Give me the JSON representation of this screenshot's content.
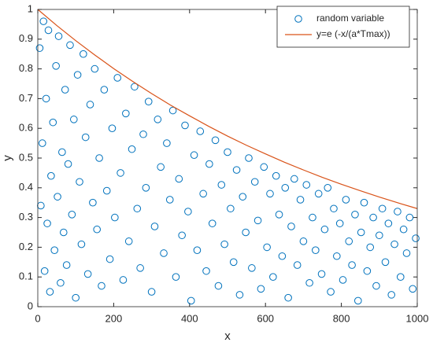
{
  "chart_data": {
    "type": "scatter",
    "xlabel": "x",
    "ylabel": "y",
    "xlim": [
      0,
      1000
    ],
    "ylim": [
      0,
      1
    ],
    "xticks": [
      0,
      200,
      400,
      600,
      800,
      1000
    ],
    "yticks": [
      0,
      0.1,
      0.2,
      0.3,
      0.4,
      0.5,
      0.6,
      0.7,
      0.8,
      0.9,
      1
    ],
    "grid": false,
    "legend": "upper right",
    "series": [
      {
        "name": "random variable",
        "type": "scatter",
        "color": "#0072bd",
        "x": [
          5,
          8,
          12,
          15,
          18,
          22,
          25,
          28,
          32,
          35,
          40,
          44,
          48,
          52,
          55,
          60,
          64,
          68,
          72,
          76,
          80,
          85,
          90,
          95,
          100,
          105,
          110,
          115,
          120,
          126,
          132,
          138,
          145,
          150,
          156,
          162,
          168,
          175,
          182,
          190,
          196,
          203,
          210,
          218,
          225,
          232,
          240,
          248,
          255,
          262,
          270,
          278,
          285,
          292,
          300,
          308,
          316,
          324,
          332,
          340,
          348,
          356,
          364,
          372,
          380,
          388,
          396,
          404,
          412,
          420,
          428,
          436,
          444,
          452,
          460,
          468,
          476,
          484,
          492,
          500,
          508,
          516,
          524,
          532,
          540,
          548,
          556,
          564,
          572,
          580,
          588,
          596,
          604,
          612,
          620,
          628,
          636,
          644,
          652,
          660,
          668,
          676,
          684,
          692,
          700,
          708,
          716,
          724,
          732,
          740,
          748,
          756,
          764,
          772,
          780,
          788,
          796,
          804,
          812,
          820,
          828,
          836,
          844,
          852,
          860,
          868,
          876,
          884,
          892,
          900,
          908,
          916,
          924,
          932,
          940,
          948,
          956,
          964,
          972,
          980,
          988,
          996
        ],
        "values": [
          0.87,
          0.34,
          0.55,
          0.96,
          0.12,
          0.7,
          0.28,
          0.93,
          0.05,
          0.44,
          0.62,
          0.19,
          0.81,
          0.37,
          0.91,
          0.08,
          0.52,
          0.25,
          0.73,
          0.14,
          0.48,
          0.88,
          0.31,
          0.63,
          0.03,
          0.78,
          0.42,
          0.21,
          0.85,
          0.57,
          0.11,
          0.68,
          0.35,
          0.8,
          0.26,
          0.5,
          0.07,
          0.73,
          0.39,
          0.16,
          0.6,
          0.3,
          0.77,
          0.45,
          0.09,
          0.65,
          0.22,
          0.53,
          0.74,
          0.33,
          0.13,
          0.58,
          0.4,
          0.69,
          0.05,
          0.27,
          0.63,
          0.47,
          0.18,
          0.55,
          0.36,
          0.66,
          0.1,
          0.43,
          0.24,
          0.61,
          0.32,
          0.02,
          0.51,
          0.19,
          0.59,
          0.38,
          0.12,
          0.48,
          0.28,
          0.56,
          0.07,
          0.41,
          0.21,
          0.52,
          0.33,
          0.15,
          0.46,
          0.04,
          0.37,
          0.25,
          0.5,
          0.13,
          0.42,
          0.29,
          0.06,
          0.47,
          0.2,
          0.38,
          0.1,
          0.44,
          0.31,
          0.17,
          0.4,
          0.03,
          0.27,
          0.43,
          0.14,
          0.36,
          0.22,
          0.41,
          0.08,
          0.3,
          0.19,
          0.38,
          0.11,
          0.26,
          0.4,
          0.05,
          0.33,
          0.17,
          0.28,
          0.09,
          0.36,
          0.22,
          0.14,
          0.31,
          0.02,
          0.25,
          0.35,
          0.12,
          0.2,
          0.3,
          0.07,
          0.24,
          0.33,
          0.15,
          0.28,
          0.04,
          0.21,
          0.32,
          0.1,
          0.26,
          0.18,
          0.3,
          0.06,
          0.23
        ]
      },
      {
        "name": "y=e (-x/(a*Tmax))",
        "type": "line",
        "color": "#d95319",
        "x": [
          0,
          50,
          100,
          150,
          200,
          250,
          300,
          350,
          400,
          450,
          500,
          550,
          600,
          650,
          700,
          750,
          800,
          850,
          900,
          950,
          1000
        ],
        "values": [
          1,
          0.946,
          0.895,
          0.847,
          0.801,
          0.758,
          0.717,
          0.678,
          0.642,
          0.607,
          0.574,
          0.543,
          0.514,
          0.486,
          0.46,
          0.435,
          0.412,
          0.39,
          0.369,
          0.349,
          0.33
        ]
      }
    ]
  }
}
